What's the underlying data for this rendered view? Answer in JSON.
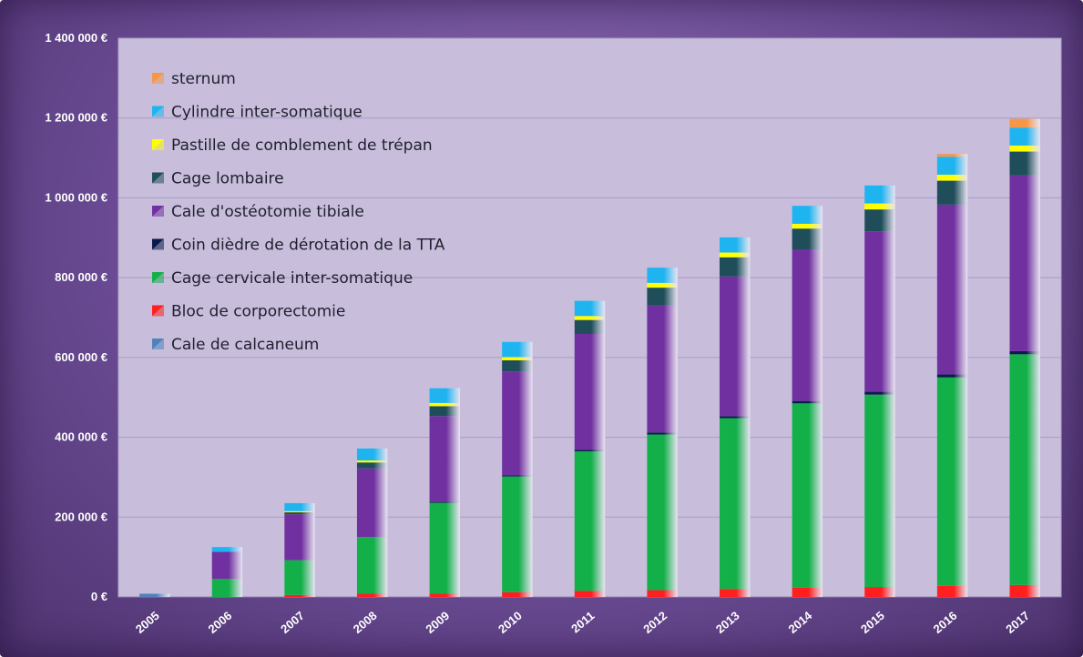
{
  "chart_data": {
    "type": "bar",
    "stacked": true,
    "categories": [
      "2005",
      "2006",
      "2007",
      "2008",
      "2009",
      "2010",
      "2011",
      "2012",
      "2013",
      "2014",
      "2015",
      "2016",
      "2017"
    ],
    "ylim": [
      0,
      1400000
    ],
    "yticks": [
      0,
      200000,
      400000,
      600000,
      800000,
      1000000,
      1200000,
      1400000
    ],
    "ytick_labels": [
      "0 €",
      "200 000 €",
      "400 000 €",
      "600 000 €",
      "800 000 €",
      "1 000 000 €",
      "1 200 000 €",
      "1 400 000 €"
    ],
    "grid": true,
    "legend_position": "top-left",
    "series": [
      {
        "name": "Cale de calcaneum",
        "color": "#4f81bd",
        "values": [
          8000,
          0,
          0,
          0,
          0,
          0,
          0,
          0,
          0,
          0,
          0,
          0,
          0
        ]
      },
      {
        "name": "Bloc de corporectomie",
        "color": "#ff1f1f",
        "values": [
          0,
          0,
          5000,
          8000,
          8000,
          12000,
          15000,
          17000,
          20000,
          23000,
          25000,
          28000,
          30000
        ]
      },
      {
        "name": "Cage cervicale inter-somatique",
        "color": "#13b04a",
        "values": [
          0,
          45000,
          87000,
          142000,
          228000,
          290000,
          350000,
          390000,
          428000,
          462000,
          482000,
          522000,
          578000
        ]
      },
      {
        "name": "Coin dièdre de dérotation de la TTA",
        "color": "#0a1a4a",
        "values": [
          0,
          0,
          0,
          0,
          2000,
          3000,
          4000,
          5000,
          5000,
          6000,
          7000,
          8000,
          8000
        ]
      },
      {
        "name": "Cale d'ostéotomie tibiale",
        "color": "#7030a0",
        "values": [
          0,
          68000,
          115000,
          172000,
          215000,
          260000,
          290000,
          318000,
          350000,
          380000,
          402000,
          425000,
          440000
        ]
      },
      {
        "name": "Cage lombaire",
        "color": "#1f4e5a",
        "values": [
          0,
          0,
          5000,
          15000,
          25000,
          28000,
          35000,
          45000,
          48000,
          52000,
          55000,
          60000,
          60000
        ]
      },
      {
        "name": "Pastille de comblement de trépan",
        "color": "#ffff00",
        "values": [
          0,
          0,
          3000,
          5000,
          8000,
          8000,
          10000,
          12000,
          12000,
          12000,
          15000,
          15000,
          15000
        ]
      },
      {
        "name": "Cylindre inter-somatique",
        "color": "#1eb4f0",
        "values": [
          0,
          12000,
          20000,
          30000,
          37000,
          38000,
          38000,
          38000,
          38000,
          45000,
          45000,
          45000,
          45000
        ]
      },
      {
        "name": "sternum",
        "color": "#f79646",
        "values": [
          0,
          0,
          0,
          0,
          0,
          0,
          0,
          0,
          0,
          0,
          0,
          7000,
          22000
        ]
      }
    ],
    "legend_order": [
      "sternum",
      "Cylindre inter-somatique",
      "Pastille de comblement de trépan",
      "Cage lombaire",
      "Cale d'ostéotomie tibiale",
      "Coin dièdre de dérotation de la TTA",
      "Cage cervicale inter-somatique",
      "Bloc de corporectomie",
      "Cale de calcaneum"
    ]
  }
}
